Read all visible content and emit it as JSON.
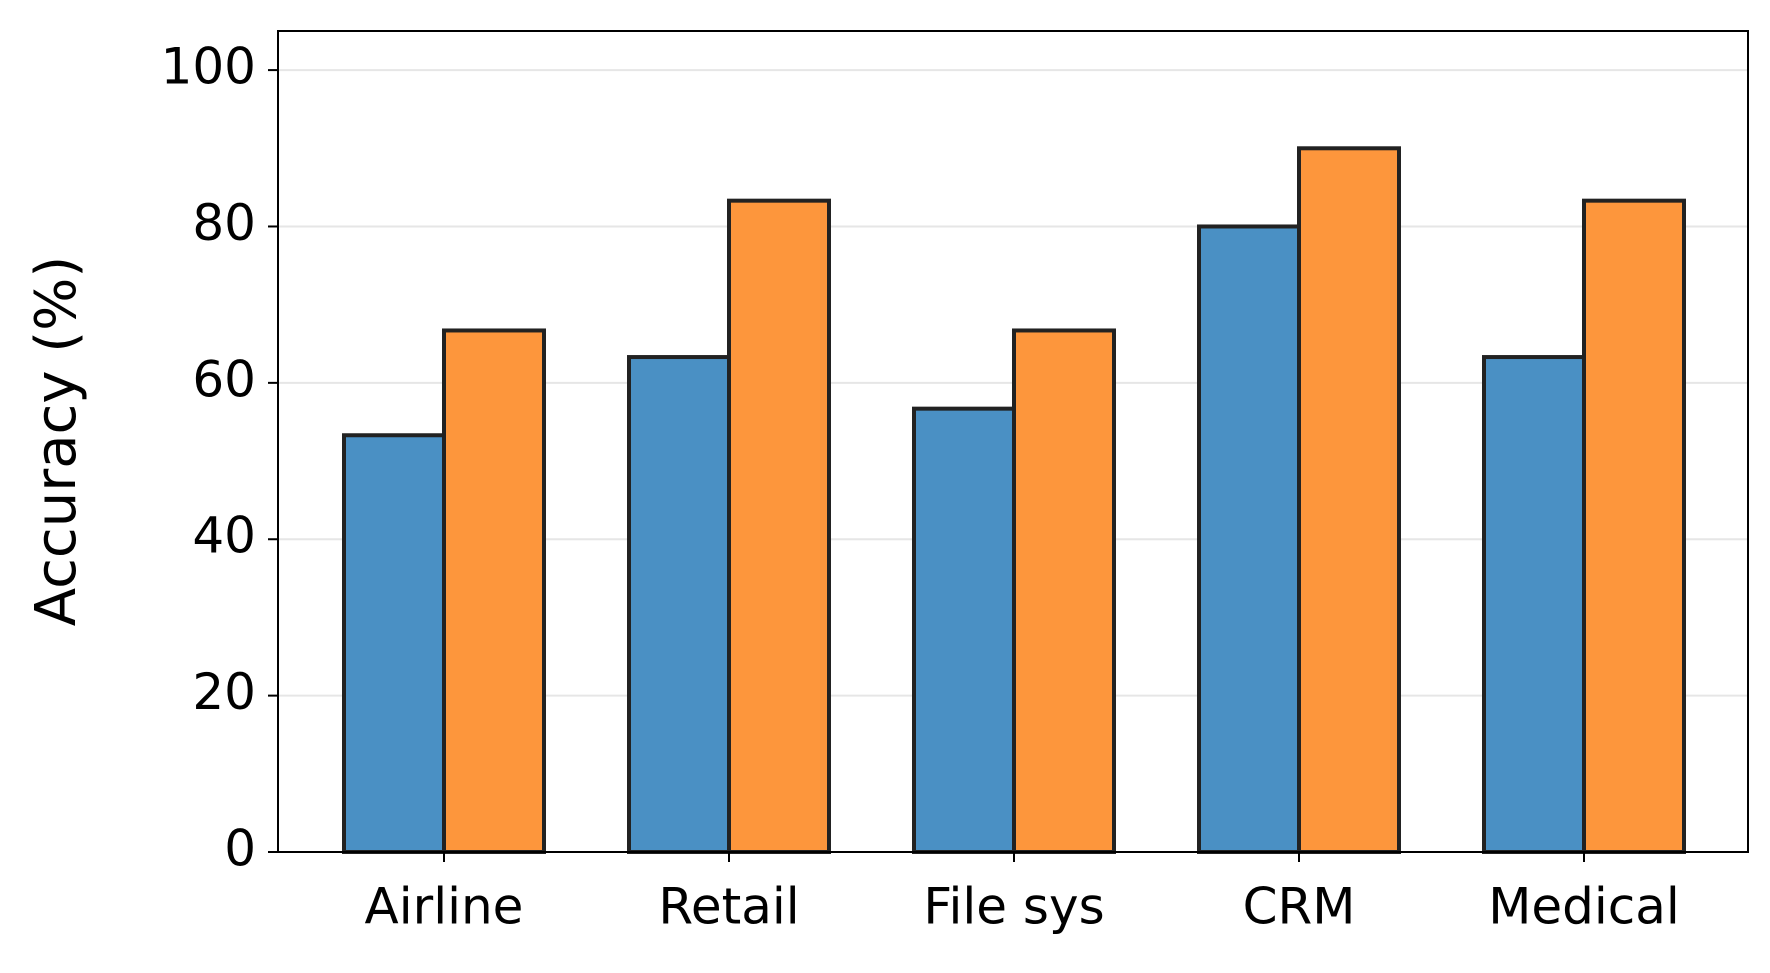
{
  "chart_data": {
    "type": "bar",
    "y_label": "Accuracy (%)",
    "categories": [
      "Airline",
      "Retail",
      "File sys",
      "CRM",
      "Medical"
    ],
    "series": [
      {
        "color": "#4a90c4",
        "values": [
          53.3,
          63.3,
          56.7,
          80,
          63.3
        ]
      },
      {
        "color": "#fd963c",
        "values": [
          66.7,
          83.3,
          66.7,
          90,
          83.3
        ]
      }
    ],
    "ylim": [
      0,
      105
    ],
    "yticks": [
      0,
      20,
      40,
      60,
      80,
      100
    ],
    "grid": true
  }
}
